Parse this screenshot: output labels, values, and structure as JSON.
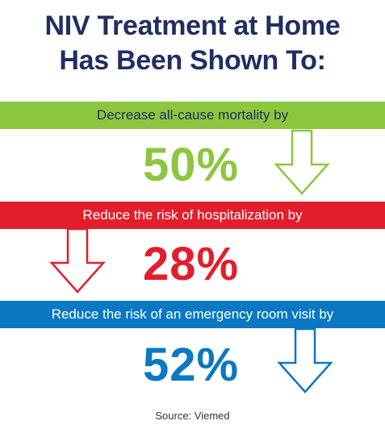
{
  "title": {
    "line1": "NIV Treatment at Home",
    "line2": "Has Been Shown To:"
  },
  "stats": [
    {
      "label": "Decrease all-cause mortality by",
      "value": "50%",
      "color": "#8cc63f"
    },
    {
      "label": "Reduce the risk of hospitalization by",
      "value": "28%",
      "color": "#e21e2d"
    },
    {
      "label": "Reduce the risk of an emergency room visit by",
      "value": "52%",
      "color": "#0a78c3"
    }
  ],
  "arrow_icon": "down-arrow-outline-icon",
  "source": "Source: Viemed"
}
